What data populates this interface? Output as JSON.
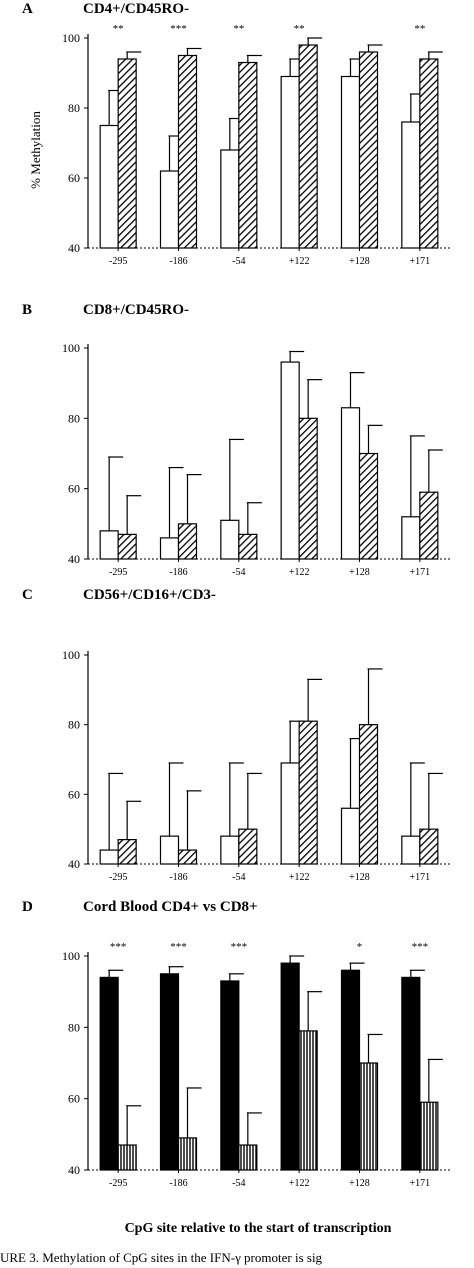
{
  "chart_data": [
    {
      "type": "bar",
      "panel": "A",
      "title": "CD4+/CD45RO-",
      "ylabel": "% Methylation",
      "ylim": [
        40,
        100
      ],
      "yticks": [
        40,
        60,
        80,
        100
      ],
      "categories": [
        "-295",
        "-186",
        "-54",
        "+122",
        "+128",
        "+171"
      ],
      "series": [
        {
          "values": [
            75,
            62,
            68,
            89,
            89,
            76
          ],
          "errors": [
            10,
            10,
            9,
            5,
            5,
            8
          ],
          "pattern": "open"
        },
        {
          "values": [
            94,
            95,
            93,
            98,
            96,
            94
          ],
          "errors": [
            2,
            2,
            2,
            2,
            2,
            2
          ],
          "pattern": "hatched"
        }
      ],
      "significance": [
        "**",
        "***",
        "**",
        "**",
        "",
        "**"
      ]
    },
    {
      "type": "bar",
      "panel": "B",
      "title": "CD8+/CD45RO-",
      "ylim": [
        40,
        100
      ],
      "yticks": [
        40,
        60,
        80,
        100
      ],
      "categories": [
        "-295",
        "-186",
        "-54",
        "+122",
        "+128",
        "+171"
      ],
      "series": [
        {
          "values": [
            48,
            46,
            51,
            96,
            83,
            52
          ],
          "errors": [
            21,
            20,
            23,
            3,
            10,
            23
          ],
          "pattern": "open"
        },
        {
          "values": [
            47,
            50,
            47,
            80,
            70,
            59
          ],
          "errors": [
            11,
            14,
            9,
            11,
            8,
            12
          ],
          "pattern": "hatched"
        }
      ],
      "significance": [
        "",
        "",
        "",
        "",
        "",
        ""
      ]
    },
    {
      "type": "bar",
      "panel": "C",
      "title": "CD56+/CD16+/CD3-",
      "ylim": [
        40,
        100
      ],
      "yticks": [
        40,
        60,
        80,
        100
      ],
      "categories": [
        "-295",
        "-186",
        "-54",
        "+122",
        "+128",
        "+171"
      ],
      "series": [
        {
          "values": [
            44,
            48,
            48,
            69,
            56,
            48
          ],
          "errors": [
            22,
            21,
            21,
            12,
            20,
            21
          ],
          "pattern": "open"
        },
        {
          "values": [
            47,
            44,
            50,
            81,
            80,
            50
          ],
          "errors": [
            11,
            17,
            16,
            12,
            16,
            16
          ],
          "pattern": "hatched"
        }
      ],
      "significance": [
        "",
        "",
        "",
        "",
        "",
        ""
      ]
    },
    {
      "type": "bar",
      "panel": "D",
      "title": "Cord Blood CD4+ vs CD8+",
      "ylim": [
        40,
        100
      ],
      "yticks": [
        40,
        60,
        80,
        100
      ],
      "categories": [
        "-295",
        "-186",
        "-54",
        "+122",
        "+128",
        "+171"
      ],
      "series": [
        {
          "values": [
            94,
            95,
            93,
            98,
            96,
            94
          ],
          "errors": [
            2,
            2,
            2,
            2,
            2,
            2
          ],
          "pattern": "solid"
        },
        {
          "values": [
            47,
            49,
            47,
            79,
            70,
            59
          ],
          "errors": [
            11,
            14,
            9,
            11,
            8,
            12
          ],
          "pattern": "vertical-striped"
        }
      ],
      "significance": [
        "***",
        "***",
        "***",
        "",
        "*",
        "***"
      ]
    }
  ],
  "xlabel": "CpG site relative to the start of transcription",
  "caption": "URE 3.   Methylation of CpG sites in the IFN-γ promoter is sig"
}
